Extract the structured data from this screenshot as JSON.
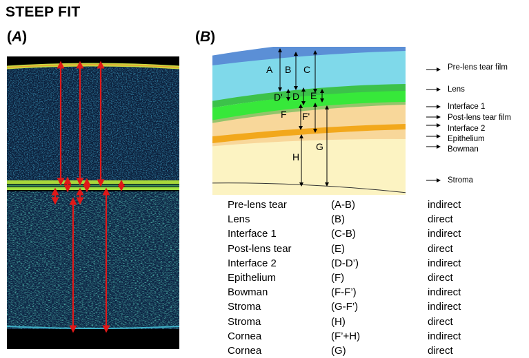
{
  "title": "STEEP FIT",
  "panel_a": {
    "open": "(",
    "letter": "A",
    "close": ")"
  },
  "panel_b": {
    "open": "(",
    "letter": "B",
    "close": ")"
  },
  "diagram_letters": [
    "A",
    "B",
    "C",
    "D'",
    "D",
    "E",
    "F",
    "F'",
    "G",
    "H"
  ],
  "layer_labels": [
    "Pre-lens tear film",
    "Lens",
    "Interface 1",
    "Post-lens tear film",
    "Interface 2",
    "Epithelium",
    "Bowman",
    "Stroma"
  ],
  "layer_colors": {
    "pre_lens_tear_film": "#5b8fd6",
    "lens": "#7fd9ea",
    "interface_1": "#3cc24a",
    "post_lens_tear_film": "#37e83a",
    "interface_2": "#93c56b",
    "epithelium": "#f8d79a",
    "bowman": "#f2a81c",
    "stroma": "#fcf3c2",
    "oct_arrows": "#e01818"
  },
  "table": [
    {
      "layer": "Pre-lens tear",
      "formula": "(A-B)",
      "method": "indirect"
    },
    {
      "layer": "Lens",
      "formula": "(B)",
      "method": "direct"
    },
    {
      "layer": "Interface 1",
      "formula": "(C-B)",
      "method": "indirect"
    },
    {
      "layer": "Post-lens tear",
      "formula": "(E)",
      "method": "direct"
    },
    {
      "layer": "Interface 2",
      "formula": "(D-D’)",
      "method": "indirect"
    },
    {
      "layer": "Epithelium",
      "formula": "(F)",
      "method": "direct"
    },
    {
      "layer": "Bowman",
      "formula": "(F-F’)",
      "method": "indirect"
    },
    {
      "layer": "Stroma",
      "formula": "(G-F’)",
      "method": "indirect"
    },
    {
      "layer": "Stroma",
      "formula": "(H)",
      "method": "direct"
    },
    {
      "layer": "Cornea",
      "formula": "(F’+H)",
      "method": "indirect"
    },
    {
      "layer": "Cornea",
      "formula": "(G)",
      "method": "direct"
    }
  ]
}
